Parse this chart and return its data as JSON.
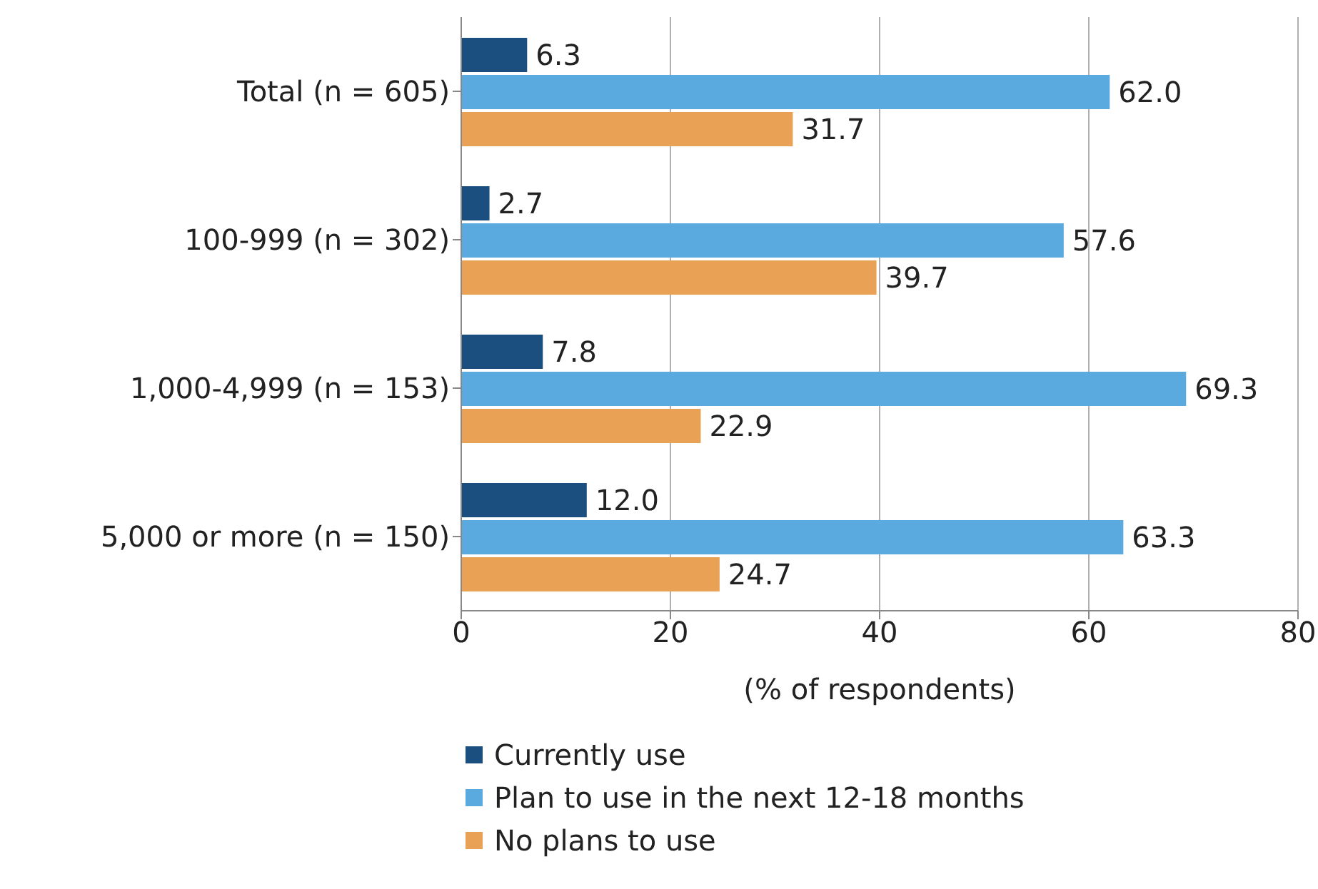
{
  "chart_data": {
    "type": "bar",
    "orientation": "horizontal",
    "xlabel": "(% of respondents)",
    "categories": [
      "Total (n = 605)",
      "100-999 (n = 302)",
      "1,000-4,999 (n = 153)",
      "5,000 or more (n  = 150)"
    ],
    "series": [
      {
        "name": "Currently use",
        "color": "#1a4f7f",
        "values": [
          6.3,
          2.7,
          7.8,
          12.0
        ],
        "value_labels": [
          "6.3",
          "2.7",
          "7.8",
          "12.0"
        ]
      },
      {
        "name": "Plan to use in the next 12-18 months",
        "color": "#5aaae0",
        "values": [
          62.0,
          57.6,
          69.3,
          63.3
        ],
        "value_labels": [
          "62.0",
          "57.6",
          "69.3",
          "63.3"
        ]
      },
      {
        "name": "No plans to use",
        "color": "#e9a255",
        "values": [
          31.7,
          39.7,
          22.9,
          24.7
        ],
        "value_labels": [
          "31.7",
          "39.7",
          "22.9",
          "24.7"
        ]
      }
    ],
    "xlim": [
      0,
      80
    ],
    "xticks": [
      0,
      20,
      40,
      60,
      80
    ],
    "grid": "x",
    "legend": "bottom"
  }
}
